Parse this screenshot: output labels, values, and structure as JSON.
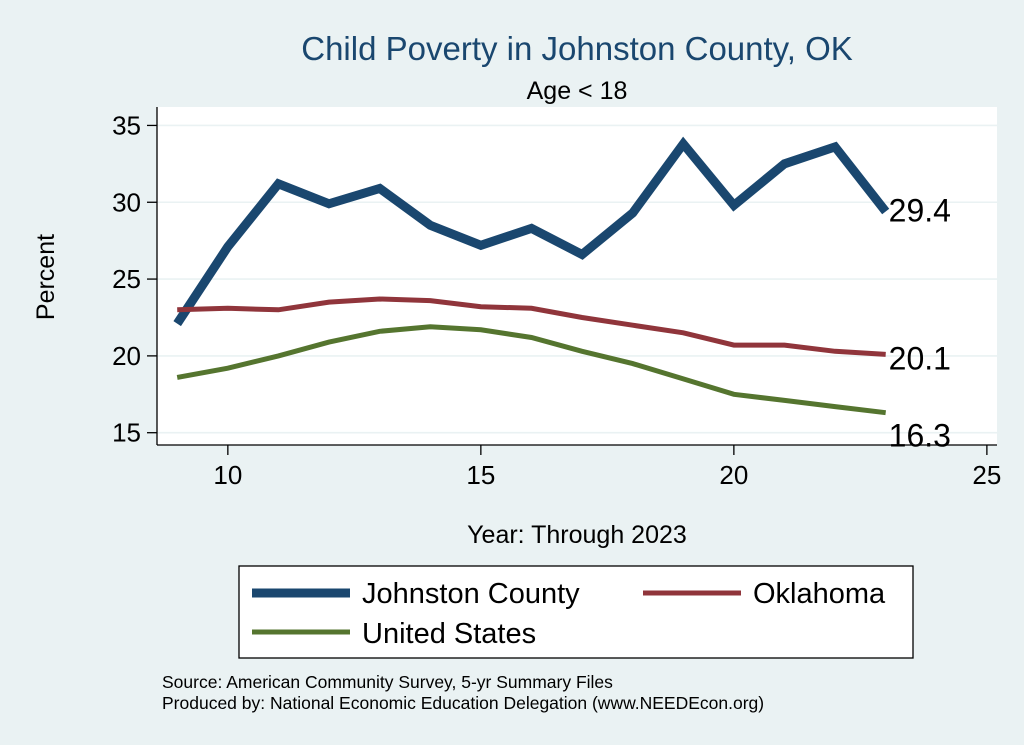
{
  "chart_data": {
    "type": "line",
    "title": "Child Poverty in Johnston County, OK",
    "subtitle": "Age < 18",
    "xlabel": "Year: Through 2023",
    "ylabel": "Percent",
    "xlim": [
      8.6,
      25.2
    ],
    "ylim": [
      14.2,
      36.2
    ],
    "xticks": [
      10,
      15,
      20,
      25
    ],
    "yticks": [
      15,
      20,
      25,
      30,
      35
    ],
    "grid": true,
    "series": [
      {
        "name": "Johnston County",
        "color": "#1a476f",
        "x": [
          9,
          10,
          11,
          12,
          13,
          14,
          15,
          16,
          17,
          18,
          19,
          20,
          21,
          22,
          23
        ],
        "values": [
          22.1,
          27.1,
          31.2,
          29.9,
          30.9,
          28.5,
          27.2,
          28.3,
          26.6,
          29.3,
          33.8,
          29.8,
          32.5,
          33.6,
          29.4
        ],
        "end_label": "29.4"
      },
      {
        "name": "Oklahoma",
        "color": "#90353b",
        "x": [
          9,
          10,
          11,
          12,
          13,
          14,
          15,
          16,
          17,
          18,
          19,
          20,
          21,
          22,
          23
        ],
        "values": [
          23.0,
          23.1,
          23.0,
          23.5,
          23.7,
          23.6,
          23.2,
          23.1,
          22.5,
          22.0,
          21.5,
          20.7,
          20.7,
          20.3,
          20.1
        ],
        "end_label": "20.1"
      },
      {
        "name": "United States",
        "color": "#55752f",
        "x": [
          9,
          10,
          11,
          12,
          13,
          14,
          15,
          16,
          17,
          18,
          19,
          20,
          21,
          22,
          23
        ],
        "values": [
          18.6,
          19.2,
          20.0,
          20.9,
          21.6,
          21.9,
          21.7,
          21.2,
          20.3,
          19.5,
          18.5,
          17.5,
          17.1,
          16.7,
          16.3
        ],
        "end_label": "16.3"
      }
    ],
    "legend": {
      "position": "bottom",
      "entries": [
        "Johnston County",
        "Oklahoma",
        "United States"
      ]
    },
    "notes": [
      "Source: American Community Survey, 5-yr Summary Files",
      "Produced by: National Economic Education Delegation (www.NEEDEcon.org)"
    ]
  }
}
